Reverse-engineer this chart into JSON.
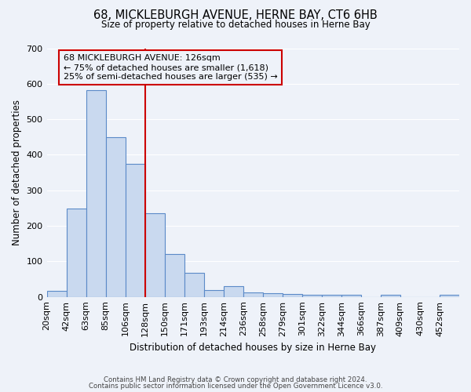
{
  "title": "68, MICKLEBURGH AVENUE, HERNE BAY, CT6 6HB",
  "subtitle": "Size of property relative to detached houses in Herne Bay",
  "xlabel": "Distribution of detached houses by size in Herne Bay",
  "ylabel": "Number of detached properties",
  "bar_labels": [
    "20sqm",
    "42sqm",
    "63sqm",
    "85sqm",
    "106sqm",
    "128sqm",
    "150sqm",
    "171sqm",
    "193sqm",
    "214sqm",
    "236sqm",
    "258sqm",
    "279sqm",
    "301sqm",
    "322sqm",
    "344sqm",
    "366sqm",
    "387sqm",
    "409sqm",
    "430sqm",
    "452sqm"
  ],
  "bar_heights": [
    18,
    248,
    583,
    450,
    375,
    235,
    120,
    68,
    20,
    31,
    12,
    11,
    8,
    7,
    5,
    5,
    0,
    5,
    0,
    0,
    5
  ],
  "bar_color": "#c9d9ef",
  "bar_edge_color": "#5b8ac8",
  "vline_x": 5,
  "vline_color": "#cc0000",
  "annotation_title": "68 MICKLEBURGH AVENUE: 126sqm",
  "annotation_line1": "← 75% of detached houses are smaller (1,618)",
  "annotation_line2": "25% of semi-detached houses are larger (535) →",
  "annotation_box_color": "#cc0000",
  "ylim": [
    0,
    700
  ],
  "yticks": [
    0,
    100,
    200,
    300,
    400,
    500,
    600,
    700
  ],
  "footer1": "Contains HM Land Registry data © Crown copyright and database right 2024.",
  "footer2": "Contains public sector information licensed under the Open Government Licence v3.0.",
  "background_color": "#eef2f9",
  "grid_color": "#ffffff"
}
